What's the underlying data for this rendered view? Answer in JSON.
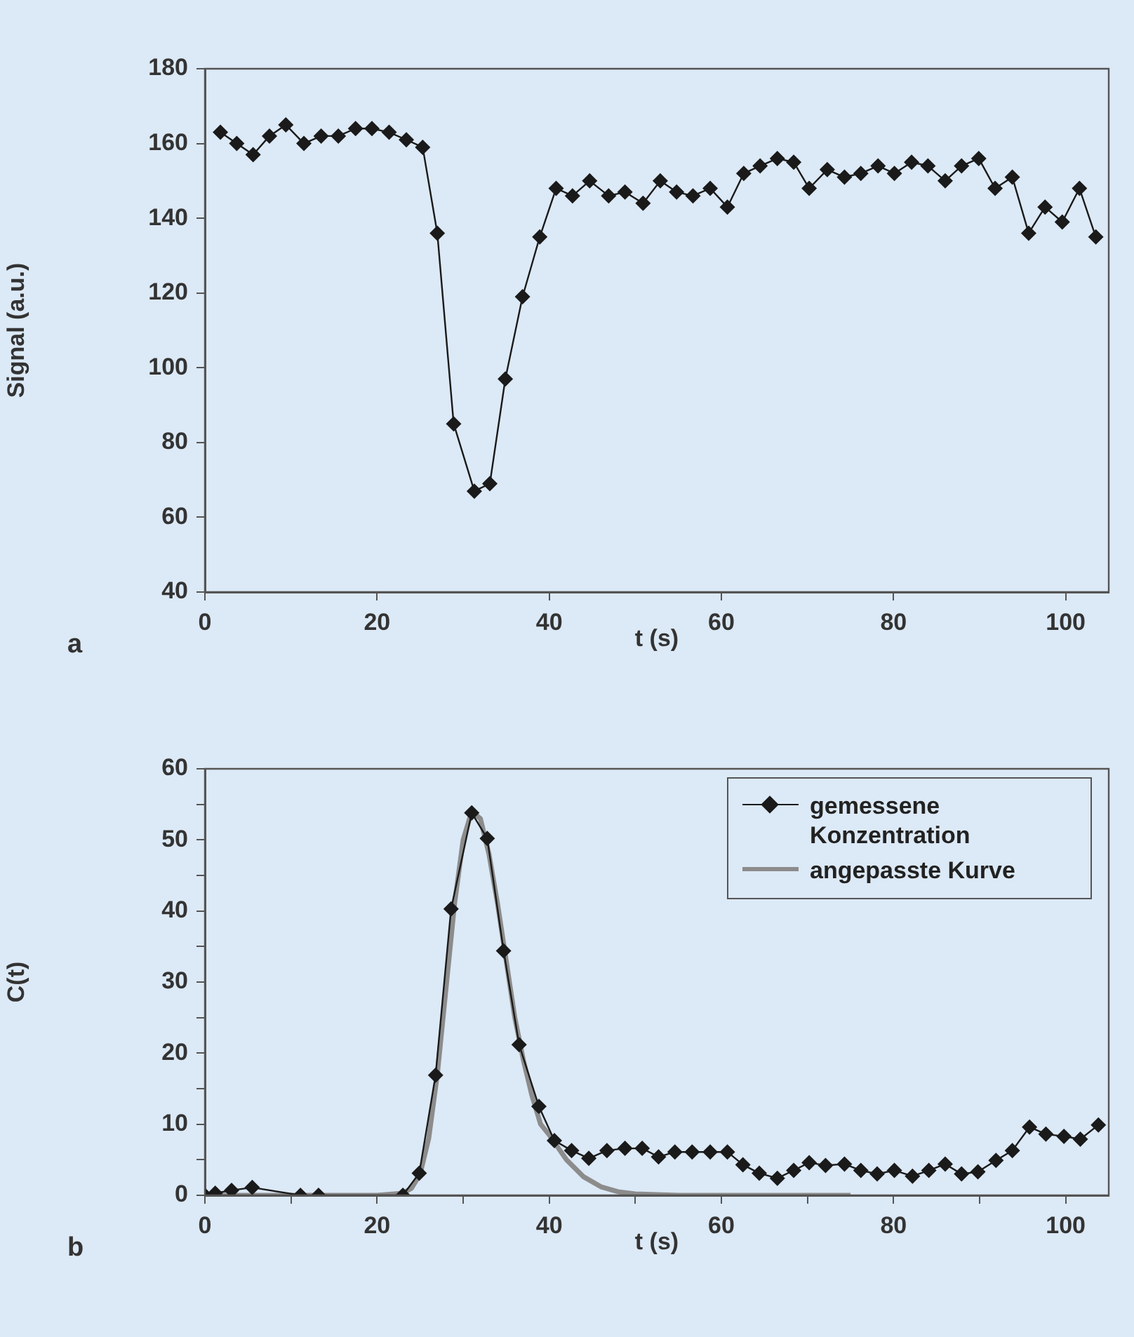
{
  "chart_data": [
    {
      "type": "line",
      "xlabel": "t (s)",
      "ylabel": "Signal (a.u.)",
      "annotations": [
        "a"
      ],
      "marker": "diamond",
      "line_style": "solid",
      "xlim": [
        0,
        105
      ],
      "xticks": [
        0,
        20,
        40,
        60,
        80,
        100
      ],
      "ylim": [
        40,
        180
      ],
      "yticks": [
        40,
        60,
        80,
        100,
        120,
        140,
        160,
        180
      ],
      "series": [
        {
          "color": "#1a1a1a",
          "x": [
            1.8,
            3.7,
            5.6,
            7.5,
            9.4,
            11.5,
            13.5,
            15.5,
            17.5,
            19.4,
            21.4,
            23.4,
            25.3,
            27.0,
            28.9,
            31.3,
            33.1,
            34.9,
            36.9,
            38.9,
            40.8,
            42.7,
            44.7,
            46.9,
            48.8,
            50.9,
            52.9,
            54.8,
            56.7,
            58.7,
            60.7,
            62.6,
            64.5,
            66.5,
            68.4,
            70.2,
            72.3,
            74.3,
            76.2,
            78.2,
            80.1,
            82.1,
            84.0,
            86.0,
            87.9,
            89.9,
            91.8,
            93.8,
            95.7,
            97.6,
            99.6,
            101.6,
            103.5
          ],
          "values": [
            163,
            160,
            157,
            162,
            165,
            160,
            162,
            162,
            164,
            164,
            163,
            161,
            159,
            136,
            85,
            67,
            69,
            97,
            119,
            135,
            148,
            146,
            150,
            146,
            147,
            144,
            150,
            147,
            146,
            148,
            143,
            152,
            154,
            156,
            155,
            148,
            153,
            151,
            152,
            154,
            152,
            155,
            154,
            150,
            154,
            156,
            148,
            151,
            136,
            143,
            139,
            148,
            135
          ]
        }
      ]
    },
    {
      "type": "line",
      "xlabel": "t (s)",
      "ylabel": "C(t)",
      "annotations": [
        "b"
      ],
      "legend": "top right",
      "line_style": "solid",
      "xlim": [
        0,
        105
      ],
      "xticks": [
        0,
        {
          "value": 10,
          "label": null
        },
        20,
        {
          "value": 30,
          "label": null
        },
        40,
        {
          "value": 50,
          "label": null
        },
        60,
        {
          "value": 70,
          "label": null
        },
        80,
        {
          "value": 90,
          "label": null
        },
        100
      ],
      "ylim": [
        0,
        60
      ],
      "yticks": [
        0,
        {
          "value": 5,
          "label": null
        },
        10,
        {
          "value": 15,
          "label": null
        },
        20,
        {
          "value": 25,
          "label": null
        },
        30,
        {
          "value": 35,
          "label": null
        },
        40,
        {
          "value": 45,
          "label": null
        },
        50,
        {
          "value": 55,
          "label": null
        },
        60
      ],
      "series": [
        {
          "name": "gemessene Konzentration",
          "color": "#1a1a1a",
          "marker": "diamond",
          "x": [
            0,
            1.2,
            3.1,
            5.5,
            11.1,
            13.2,
            23.0,
            24.9,
            26.8,
            28.6,
            31.0,
            32.8,
            34.7,
            36.5,
            38.8,
            40.6,
            42.6,
            44.6,
            46.7,
            48.8,
            50.8,
            52.7,
            54.6,
            56.6,
            58.7,
            60.7,
            62.5,
            64.4,
            66.5,
            68.4,
            70.2,
            72.1,
            74.3,
            76.2,
            78.1,
            80.1,
            82.2,
            84.1,
            86.0,
            87.9,
            89.8,
            91.9,
            93.8,
            95.8,
            97.7,
            99.8,
            101.7,
            103.8
          ],
          "values": [
            0,
            0.3,
            0.7,
            1.1,
            0,
            0,
            0,
            3.1,
            16.9,
            40.3,
            53.8,
            50.2,
            34.4,
            21.2,
            12.5,
            7.7,
            6.3,
            5.2,
            6.3,
            6.6,
            6.6,
            5.4,
            6.1,
            6.1,
            6.1,
            6.1,
            4.3,
            3.1,
            2.4,
            3.5,
            4.6,
            4.2,
            4.4,
            3.5,
            3.0,
            3.5,
            2.7,
            3.5,
            4.4,
            3.0,
            3.3,
            4.9,
            6.3,
            9.6,
            8.6,
            8.3,
            7.9,
            9.9
          ]
        },
        {
          "name": "angepasste Kurve",
          "color": "#8c8c8c",
          "marker": "none",
          "x": [
            0,
            20,
            23,
            24,
            25,
            26,
            27,
            28,
            29,
            30,
            31,
            32,
            33,
            34,
            35,
            36,
            37,
            38,
            39,
            40,
            42,
            44,
            46,
            48,
            50,
            55,
            75
          ],
          "values": [
            0,
            0,
            0.3,
            1,
            3,
            8,
            17,
            29,
            41,
            50,
            54,
            53,
            48,
            41,
            33,
            25,
            19,
            14,
            10,
            8.5,
            5,
            2.6,
            1.2,
            0.5,
            0.2,
            0,
            0
          ]
        }
      ]
    }
  ]
}
